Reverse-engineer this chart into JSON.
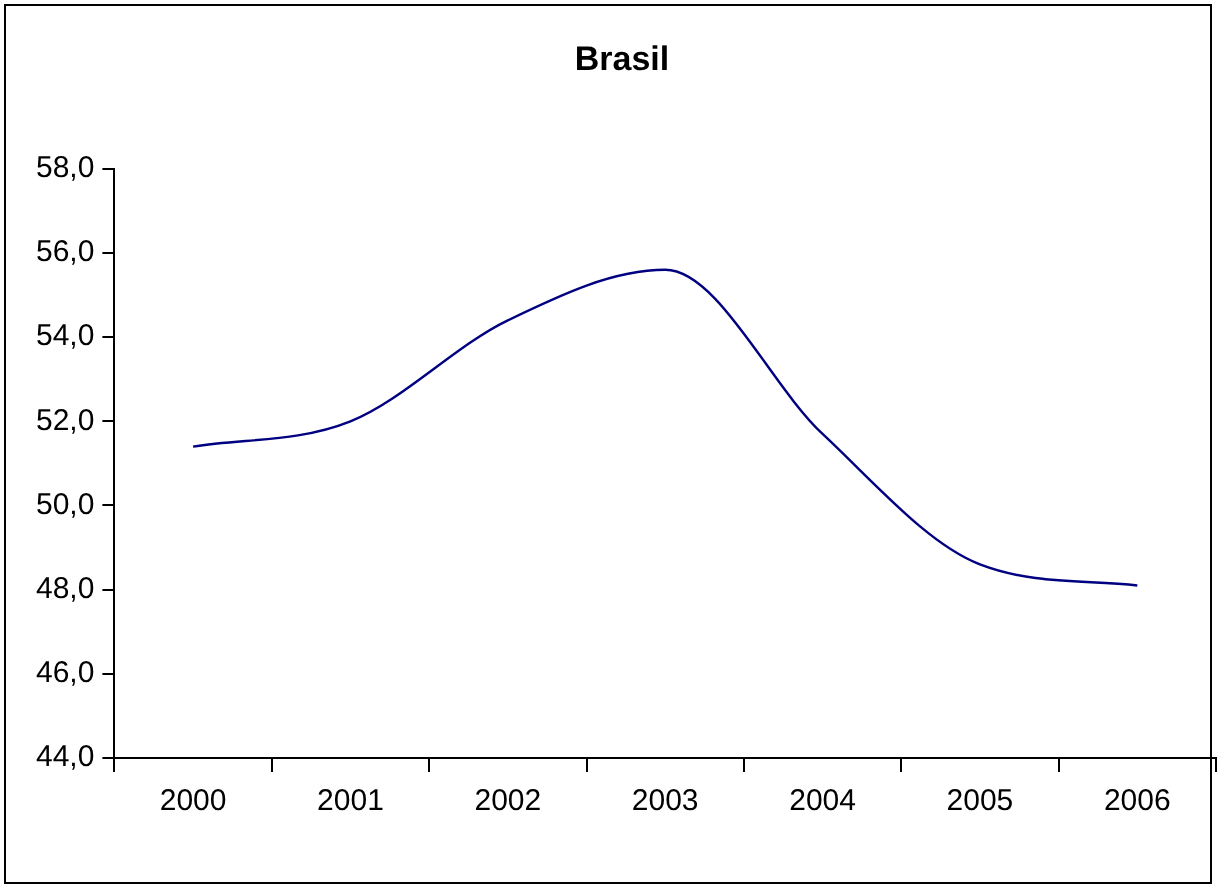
{
  "chart_data": {
    "type": "line",
    "title": "Brasil",
    "categories": [
      "2000",
      "2001",
      "2002",
      "2003",
      "2004",
      "2005",
      "2006"
    ],
    "series": [
      {
        "color": "#000080",
        "values": [
          51.4,
          52.0,
          54.4,
          55.6,
          51.7,
          48.6,
          48.1
        ]
      }
    ],
    "ylim": [
      44,
      58
    ],
    "yticks": [
      {
        "value": 44,
        "label": "44,0"
      },
      {
        "value": 46,
        "label": "46,0"
      },
      {
        "value": 48,
        "label": "48,0"
      },
      {
        "value": 50,
        "label": "50,0"
      },
      {
        "value": 52,
        "label": "52,0"
      },
      {
        "value": 54,
        "label": "54,0"
      },
      {
        "value": 56,
        "label": "56,0"
      },
      {
        "value": 58,
        "label": "58,0"
      }
    ],
    "grid": false,
    "legend": false,
    "marker": "none",
    "line_style": "solid"
  }
}
